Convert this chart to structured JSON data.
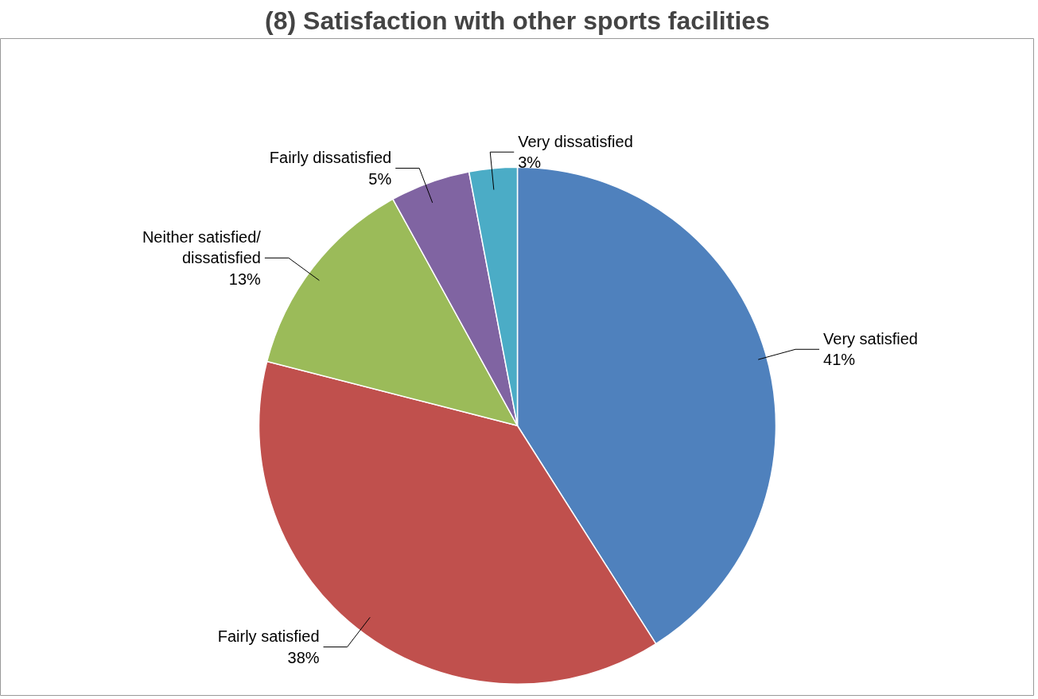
{
  "chart_data": {
    "type": "pie",
    "title": "(8) Satisfaction with other sports facilities",
    "categories": [
      "Very satisfied",
      "Fairly satisfied",
      "Neither satisfied/ dissatisfied",
      "Fairly dissatisfied",
      "Very dissatisfied"
    ],
    "values": [
      41,
      38,
      13,
      5,
      3
    ],
    "colors": [
      "#4f81bd",
      "#c0504d",
      "#9bbb59",
      "#8064a2",
      "#4bacc6"
    ],
    "value_labels": [
      "41%",
      "38%",
      "13%",
      "5%",
      "3%"
    ]
  }
}
